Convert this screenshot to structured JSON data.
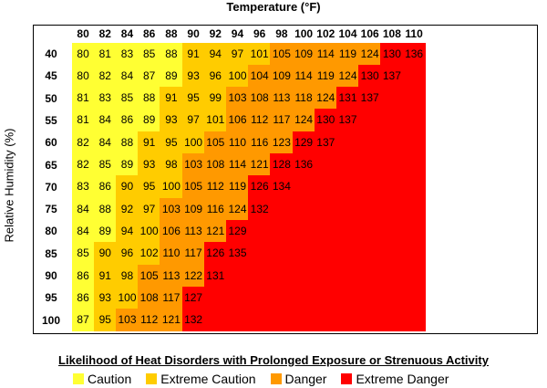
{
  "chart_data": {
    "type": "heatmap",
    "title": "Temperature (°F)",
    "xlabel": "Temperature (°F)",
    "ylabel": "Relative Humidity (%)",
    "x": [
      80,
      82,
      84,
      86,
      88,
      90,
      92,
      94,
      96,
      98,
      100,
      102,
      104,
      106,
      108,
      110
    ],
    "y": [
      40,
      45,
      50,
      55,
      60,
      65,
      70,
      75,
      80,
      85,
      90,
      95,
      100
    ],
    "values": [
      [
        80,
        81,
        83,
        85,
        88,
        91,
        94,
        97,
        101,
        105,
        109,
        114,
        119,
        124,
        130,
        136
      ],
      [
        80,
        82,
        84,
        87,
        89,
        93,
        96,
        100,
        104,
        109,
        114,
        119,
        124,
        130,
        137,
        null
      ],
      [
        81,
        83,
        85,
        88,
        91,
        95,
        99,
        103,
        108,
        113,
        118,
        124,
        131,
        137,
        null,
        null
      ],
      [
        81,
        84,
        86,
        89,
        93,
        97,
        101,
        106,
        112,
        117,
        124,
        130,
        137,
        null,
        null,
        null
      ],
      [
        82,
        84,
        88,
        91,
        95,
        100,
        105,
        110,
        116,
        123,
        129,
        137,
        null,
        null,
        null,
        null
      ],
      [
        82,
        85,
        89,
        93,
        98,
        103,
        108,
        114,
        121,
        128,
        136,
        null,
        null,
        null,
        null,
        null
      ],
      [
        83,
        86,
        90,
        95,
        100,
        105,
        112,
        119,
        126,
        134,
        null,
        null,
        null,
        null,
        null,
        null
      ],
      [
        84,
        88,
        92,
        97,
        103,
        109,
        116,
        124,
        132,
        null,
        null,
        null,
        null,
        null,
        null,
        null
      ],
      [
        84,
        89,
        94,
        100,
        106,
        113,
        121,
        129,
        null,
        null,
        null,
        null,
        null,
        null,
        null,
        null
      ],
      [
        85,
        90,
        96,
        102,
        110,
        117,
        126,
        135,
        null,
        null,
        null,
        null,
        null,
        null,
        null,
        null
      ],
      [
        86,
        91,
        98,
        105,
        113,
        122,
        131,
        null,
        null,
        null,
        null,
        null,
        null,
        null,
        null,
        null
      ],
      [
        86,
        93,
        100,
        108,
        117,
        127,
        null,
        null,
        null,
        null,
        null,
        null,
        null,
        null,
        null,
        null
      ],
      [
        87,
        95,
        103,
        112,
        121,
        132,
        null,
        null,
        null,
        null,
        null,
        null,
        null,
        null,
        null,
        null
      ]
    ],
    "categories_by_range": [
      {
        "name": "Caution",
        "min": 80,
        "max": 89,
        "color": "#ffff33"
      },
      {
        "name": "Extreme Caution",
        "min": 90,
        "max": 102,
        "color": "#ffcc00"
      },
      {
        "name": "Danger",
        "min": 103,
        "max": 124,
        "color": "#ff9900"
      },
      {
        "name": "Extreme Danger",
        "min": 125,
        "max": 999,
        "color": "#ff0000"
      }
    ],
    "empty_color": "#ff0000",
    "grid": false
  },
  "legend": {
    "title": "Likelihood of Heat Disorders with Prolonged Exposure or Strenuous Activity",
    "items": [
      {
        "label": "Caution",
        "color": "#ffff33"
      },
      {
        "label": "Extreme Caution",
        "color": "#ffcc00"
      },
      {
        "label": "Danger",
        "color": "#ff9900"
      },
      {
        "label": "Extreme Danger",
        "color": "#ff0000"
      }
    ]
  }
}
